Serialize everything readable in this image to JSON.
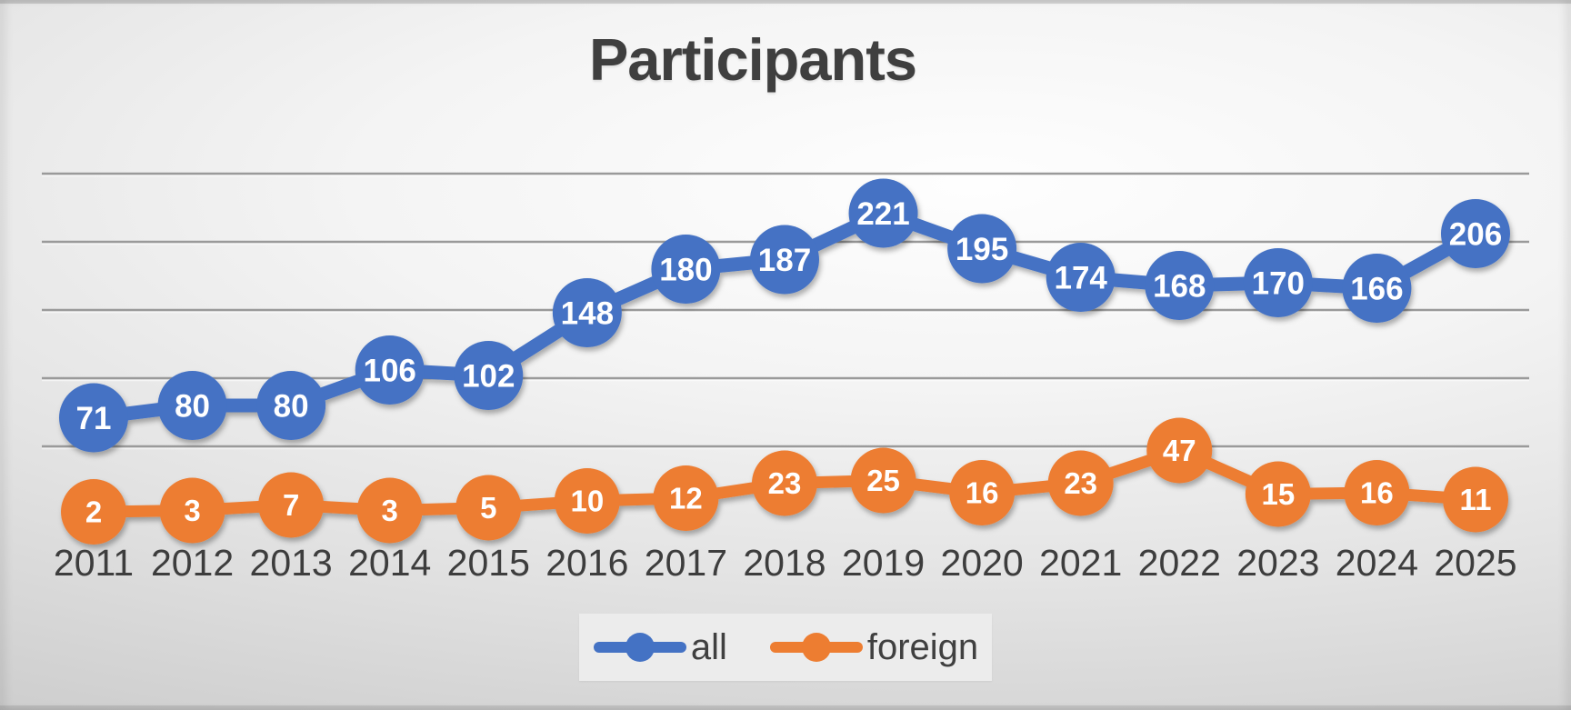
{
  "title": "Participants",
  "chart_data": {
    "type": "line",
    "title": "Participants",
    "x": [
      "2011",
      "2012",
      "2013",
      "2014",
      "2015",
      "2016",
      "2017",
      "2018",
      "2019",
      "2020",
      "2021",
      "2022",
      "2023",
      "2024",
      "2025"
    ],
    "series": [
      {
        "name": "all",
        "color": "#4472C4",
        "values": [
          71,
          80,
          80,
          106,
          102,
          148,
          180,
          187,
          221,
          195,
          174,
          168,
          170,
          166,
          206
        ]
      },
      {
        "name": "foreign",
        "color": "#ED7D31",
        "values": [
          2,
          3,
          7,
          3,
          5,
          10,
          12,
          23,
          25,
          16,
          23,
          47,
          15,
          16,
          11
        ]
      }
    ],
    "data_labels": "shown in white bold inside circular markers",
    "xlabel": "",
    "ylabel": "",
    "ylim": [
      0,
      250
    ],
    "gridline_values": [
      50,
      100,
      150,
      200,
      250
    ],
    "grid": "horizontal gridlines on, y-axis tick labels hidden",
    "legend_position": "bottom-center"
  },
  "colors": {
    "series_all": "#4472C4",
    "series_foreign": "#ED7D31",
    "gridline": "#9a9a9a",
    "axis_line": "#383838",
    "text": "#3d3d3d",
    "data_label_text": "#ffffff",
    "legend_background": "#ececec"
  },
  "legend": {
    "items": [
      {
        "label": "all",
        "color": "#4472C4"
      },
      {
        "label": "foreign",
        "color": "#ED7D31"
      }
    ]
  }
}
